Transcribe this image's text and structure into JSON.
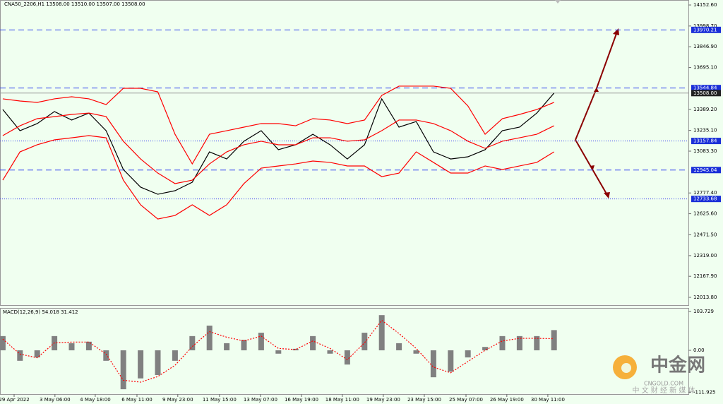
{
  "chart_data": [
    {
      "type": "line",
      "title": "CNA50_2206,H1  13508.00 13510.00 13507.00 13508.00",
      "x": [
        0,
        1,
        2,
        3,
        4,
        5,
        6,
        7,
        8,
        9,
        10,
        11,
        12,
        13,
        14,
        15,
        16,
        17,
        18,
        19,
        20,
        21,
        22,
        23,
        24,
        25,
        26,
        27,
        28,
        29,
        30,
        31,
        32
      ],
      "xlim": [
        -0.16,
        39.8
      ],
      "xticks": [
        {
          "value": 0.66,
          "label": "29 Apr 2022"
        },
        {
          "value": 3.03,
          "label": "3 May 06:00"
        },
        {
          "value": 5.37,
          "label": "4 May 18:00"
        },
        {
          "value": 7.79,
          "label": "6 May 11:00"
        },
        {
          "value": 10.16,
          "label": "9 May 23:00"
        },
        {
          "value": 12.58,
          "label": "11 May 15:00"
        },
        {
          "value": 14.96,
          "label": "13 May 07:00"
        },
        {
          "value": 17.34,
          "label": "16 May 19:00"
        },
        {
          "value": 19.71,
          "label": "18 May 11:00"
        },
        {
          "value": 22.09,
          "label": "19 May 23:00"
        },
        {
          "value": 24.47,
          "label": "23 May 15:00"
        },
        {
          "value": 26.89,
          "label": "25 May 07:00"
        },
        {
          "value": 29.26,
          "label": "26 May 19:00"
        },
        {
          "value": 31.64,
          "label": "30 May 11:00"
        }
      ],
      "ylim": [
        11957,
        14189
      ],
      "yticks": [
        {
          "value": 14152.6,
          "label": "14152.60"
        },
        {
          "value": 13998.7,
          "label": "13998.70"
        },
        {
          "value": 13846.9,
          "label": "13846.90"
        },
        {
          "value": 13695.1,
          "label": "13695.10"
        },
        {
          "value": 13389.2,
          "label": "13389.20"
        },
        {
          "value": 13235.1,
          "label": "13235.10"
        },
        {
          "value": 13083.3,
          "label": "13083.30"
        },
        {
          "value": 12777.4,
          "label": "12777.40"
        },
        {
          "value": 12625.6,
          "label": "12625.60"
        },
        {
          "value": 12471.5,
          "label": "12471.50"
        },
        {
          "value": 12319,
          "label": "12319.00"
        },
        {
          "value": 12167.9,
          "label": "12167.90"
        },
        {
          "value": 12013.8,
          "label": "12013.80"
        }
      ],
      "series": [
        {
          "color": "#000000",
          "values": [
            13388,
            13233,
            13285,
            13373,
            13311,
            13362,
            13233,
            12949,
            12820,
            12768,
            12794,
            12856,
            13078,
            13026,
            13156,
            13233,
            13094,
            13130,
            13207,
            13130,
            13026,
            13130,
            13466,
            13259,
            13300,
            13078,
            13026,
            13042,
            13094,
            13233,
            13259,
            13362,
            13508
          ]
        },
        {
          "color": "#ff0000",
          "values": [
            13466,
            13450,
            13440,
            13466,
            13481,
            13466,
            13424,
            13543,
            13543,
            13517,
            13207,
            12990,
            13207,
            13233,
            13259,
            13285,
            13285,
            13269,
            13321,
            13311,
            13285,
            13311,
            13491,
            13559,
            13559,
            13559,
            13543,
            13414,
            13207,
            13321,
            13352,
            13388,
            13440
          ]
        },
        {
          "color": "#ff0000",
          "values": [
            13197,
            13269,
            13321,
            13336,
            13352,
            13362,
            13336,
            13156,
            13026,
            12923,
            12846,
            12871,
            12990,
            13078,
            13130,
            13156,
            13130,
            13130,
            13181,
            13181,
            13156,
            13166,
            13233,
            13311,
            13311,
            13285,
            13233,
            13156,
            13104,
            13156,
            13181,
            13207,
            13269
          ]
        },
        {
          "color": "#ff0000",
          "values": [
            12871,
            13078,
            13130,
            13166,
            13181,
            13197,
            13181,
            12871,
            12691,
            12587,
            12613,
            12691,
            12613,
            12691,
            12846,
            12959,
            12975,
            12990,
            13011,
            13001,
            12975,
            12975,
            12897,
            12923,
            13078,
            13001,
            12923,
            12923,
            12975,
            12949,
            12975,
            13001,
            13078
          ]
        }
      ],
      "levels": [
        {
          "value": 13970.21,
          "label": "13970.21",
          "style": "dashed"
        },
        {
          "value": 13544.84,
          "label": "13544.84",
          "style": "dashed"
        },
        {
          "value": 13508,
          "label": "13508.00",
          "style": "solid"
        },
        {
          "value": 13157.84,
          "label": "13157.84",
          "style": "dotted"
        },
        {
          "value": 12945.04,
          "label": "12945.04",
          "style": "dashed"
        },
        {
          "value": 12733.68,
          "label": "12733.68",
          "style": "dotted"
        }
      ]
    },
    {
      "type": "macd",
      "title": "MACD(12,26,9) 54.018 31.412",
      "x": [
        0,
        1,
        2,
        3,
        4,
        5,
        6,
        7,
        8,
        9,
        10,
        11,
        12,
        13,
        14,
        15,
        16,
        17,
        18,
        19,
        20,
        21,
        22,
        23,
        24,
        25,
        26,
        27,
        28,
        29,
        30,
        31,
        32
      ],
      "xlim": [
        -0.16,
        39.8
      ],
      "ylim": [
        -117,
        113.2
      ],
      "yticks": [
        103.729,
        {
          "value": 0,
          "label": "0.00"
        },
        -111.925
      ],
      "series": [
        {
          "type": "bar",
          "color": "#808080",
          "values": [
            38,
            -28,
            -19,
            38,
            19,
            23,
            -28,
            -104,
            -75,
            -66,
            -28,
            38,
            66,
            19,
            28,
            47,
            -9,
            4,
            38,
            -9,
            -38,
            47,
            94,
            19,
            -9,
            -72,
            -57,
            -19,
            9,
            38,
            38,
            38,
            54
          ]
        },
        {
          "type": "line",
          "color": "#ff0000",
          "values": [
            30,
            -10,
            -20,
            20,
            22,
            22,
            -10,
            -80,
            -85,
            -70,
            -40,
            10,
            50,
            35,
            25,
            38,
            5,
            2,
            25,
            5,
            -25,
            20,
            80,
            45,
            5,
            -45,
            -60,
            -30,
            0,
            25,
            32,
            32,
            31
          ]
        }
      ]
    }
  ],
  "watermark": {
    "logo": "中金网",
    "site": "CNGOLD.COM",
    "tagline": "中 文 财 经 新 媒 体"
  }
}
